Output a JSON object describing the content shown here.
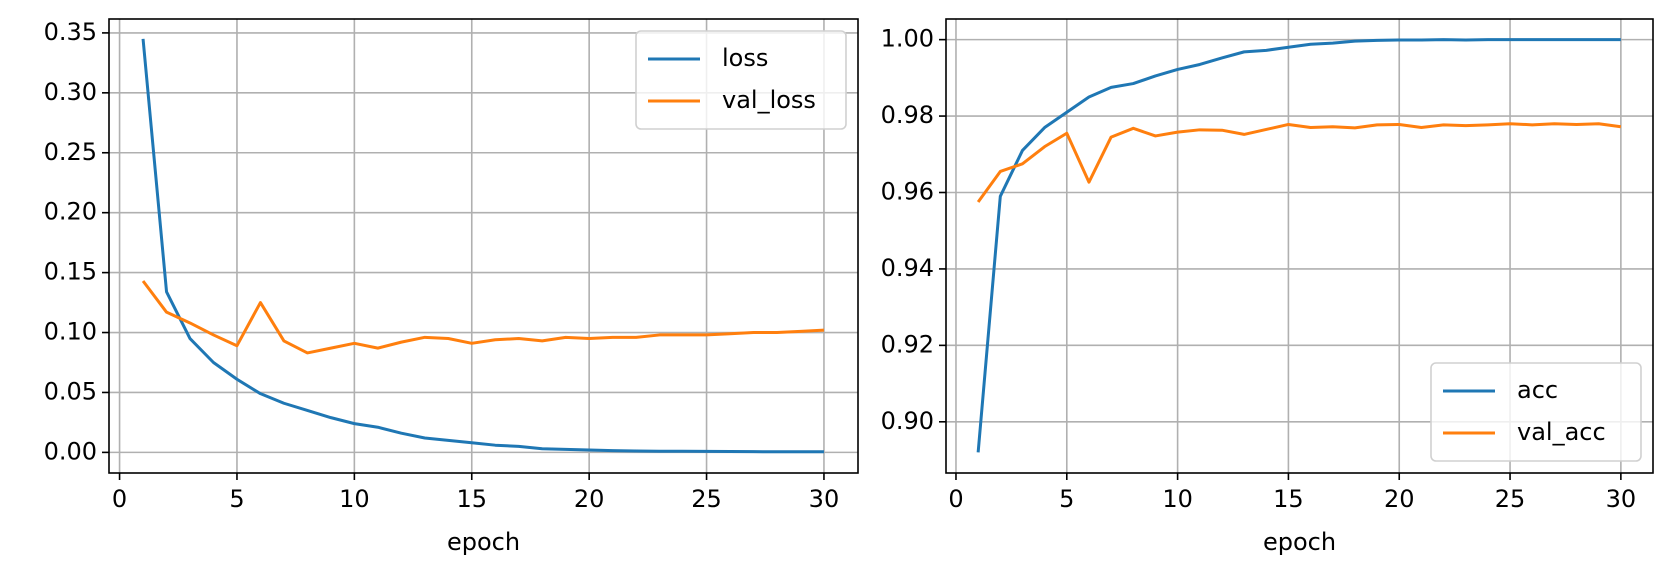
{
  "chart_data": [
    {
      "type": "line",
      "xlabel": "epoch",
      "x": [
        1,
        2,
        3,
        4,
        5,
        6,
        7,
        8,
        9,
        10,
        11,
        12,
        13,
        14,
        15,
        16,
        17,
        18,
        19,
        20,
        21,
        22,
        23,
        24,
        25,
        26,
        27,
        28,
        29,
        30
      ],
      "series": [
        {
          "name": "loss",
          "color": "#1f77b4",
          "values": [
            0.345,
            0.134,
            0.095,
            0.075,
            0.061,
            0.049,
            0.041,
            0.035,
            0.029,
            0.024,
            0.021,
            0.016,
            0.012,
            0.01,
            0.008,
            0.006,
            0.005,
            0.003,
            0.0025,
            0.002,
            0.0015,
            0.0012,
            0.001,
            0.0009,
            0.0008,
            0.0007,
            0.0006,
            0.0005,
            0.0005,
            0.0005
          ]
        },
        {
          "name": "val_loss",
          "color": "#ff7f0e",
          "values": [
            0.143,
            0.117,
            0.108,
            0.098,
            0.089,
            0.125,
            0.093,
            0.083,
            0.087,
            0.091,
            0.087,
            0.092,
            0.096,
            0.095,
            0.091,
            0.094,
            0.095,
            0.093,
            0.096,
            0.095,
            0.096,
            0.096,
            0.098,
            0.098,
            0.098,
            0.099,
            0.1,
            0.1,
            0.101,
            0.102
          ]
        }
      ],
      "xlim": [
        -0.45,
        31.45
      ],
      "xticks": [
        0,
        5,
        10,
        15,
        20,
        25,
        30
      ],
      "ylim": [
        -0.0172,
        0.3616
      ],
      "yticks": [
        {
          "value": 0,
          "label": "0.00"
        },
        0.05,
        {
          "value": 0.1,
          "label": "0.10"
        },
        0.15,
        {
          "value": 0.2,
          "label": "0.20"
        },
        0.25,
        {
          "value": 0.3,
          "label": "0.30"
        },
        0.35
      ],
      "grid": true,
      "legend": "upper right"
    },
    {
      "type": "line",
      "xlabel": "epoch",
      "x": [
        1,
        2,
        3,
        4,
        5,
        6,
        7,
        8,
        9,
        10,
        11,
        12,
        13,
        14,
        15,
        16,
        17,
        18,
        19,
        20,
        21,
        22,
        23,
        24,
        25,
        26,
        27,
        28,
        29,
        30
      ],
      "series": [
        {
          "name": "acc",
          "color": "#1f77b4",
          "values": [
            0.892,
            0.959,
            0.971,
            0.977,
            0.981,
            0.985,
            0.9875,
            0.9885,
            0.9905,
            0.9922,
            0.9935,
            0.9952,
            0.9968,
            0.9972,
            0.998,
            0.9988,
            0.9991,
            0.9996,
            0.9998,
            0.9999,
            0.9999,
            1.0,
            0.9999,
            1.0,
            1.0,
            1.0,
            1.0,
            1.0,
            1.0,
            1.0
          ]
        },
        {
          "name": "val_acc",
          "color": "#ff7f0e",
          "values": [
            0.9575,
            0.9655,
            0.9675,
            0.972,
            0.9755,
            0.9627,
            0.9745,
            0.9768,
            0.9748,
            0.9758,
            0.9764,
            0.9763,
            0.9752,
            0.9765,
            0.9778,
            0.977,
            0.9772,
            0.9769,
            0.9777,
            0.9778,
            0.977,
            0.9777,
            0.9775,
            0.9777,
            0.978,
            0.9777,
            0.978,
            0.9778,
            0.978,
            0.9772
          ]
        }
      ],
      "xlim": [
        -0.45,
        31.45
      ],
      "xticks": [
        0,
        5,
        10,
        15,
        20,
        25,
        30
      ],
      "ylim": [
        0.8866,
        1.0054
      ],
      "yticks": [
        {
          "value": 0.9,
          "label": "0.90"
        },
        0.92,
        0.94,
        0.96,
        0.98,
        {
          "value": 1,
          "label": "1.00"
        }
      ],
      "grid": true,
      "legend": "lower right"
    }
  ]
}
